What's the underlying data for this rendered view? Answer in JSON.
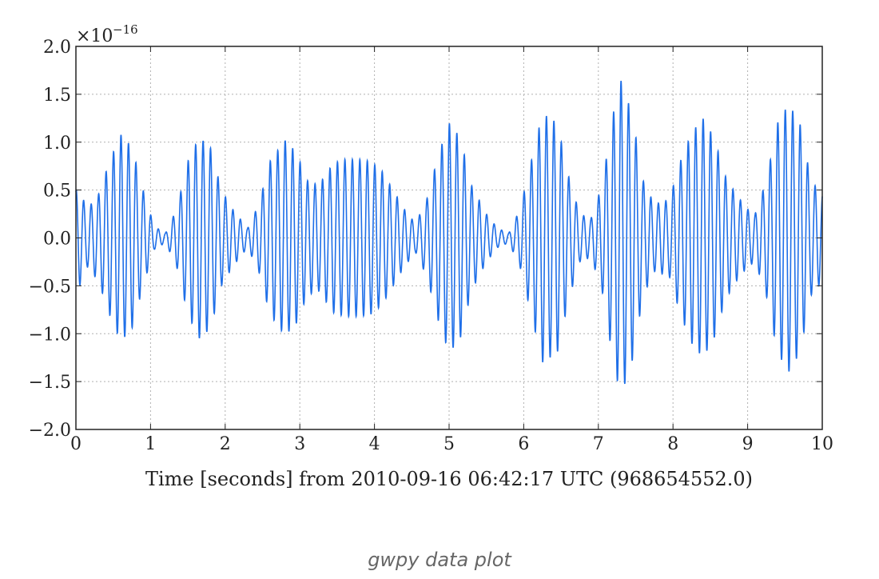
{
  "caption": "gwpy data plot",
  "chart_data": {
    "type": "line",
    "title": "",
    "xlabel": "Time [seconds] from 2010-09-16 06:42:17 UTC (968654552.0)",
    "ylabel": "",
    "xlim": [
      0,
      10
    ],
    "ylim": [
      -2.0,
      2.0
    ],
    "y_scale_label": "×10",
    "y_scale_exponent": "−16",
    "x_ticks": [
      0,
      1,
      2,
      3,
      4,
      5,
      6,
      7,
      8,
      9,
      10
    ],
    "x_tick_labels": [
      "0",
      "1",
      "2",
      "3",
      "4",
      "5",
      "6",
      "7",
      "8",
      "9",
      "10"
    ],
    "y_ticks": [
      -2.0,
      -1.5,
      -1.0,
      -0.5,
      0.0,
      0.5,
      1.0,
      1.5,
      2.0
    ],
    "y_tick_labels": [
      "−2.0",
      "−1.5",
      "−1.0",
      "−0.5",
      "0.0",
      "0.5",
      "1.0",
      "1.5",
      "2.0"
    ],
    "grid": true,
    "line_color": "#1f6fe8",
    "oscillation_period_s": 0.1,
    "envelope": {
      "t": [
        0,
        0.05,
        0.15,
        0.3,
        0.45,
        0.6,
        0.75,
        0.9,
        1.05,
        1.2,
        1.35,
        1.5,
        1.65,
        1.8,
        1.95,
        2.1,
        2.3,
        2.45,
        2.6,
        2.8,
        2.95,
        3.1,
        3.25,
        3.45,
        3.6,
        3.8,
        3.95,
        4.1,
        4.25,
        4.4,
        4.55,
        4.7,
        4.85,
        5.0,
        5.15,
        5.3,
        5.5,
        5.65,
        5.8,
        5.95,
        6.1,
        6.25,
        6.45,
        6.6,
        6.75,
        6.9,
        7.05,
        7.2,
        7.3,
        7.45,
        7.6,
        7.75,
        7.95,
        8.1,
        8.25,
        8.4,
        8.55,
        8.7,
        8.85,
        9.0,
        9.1,
        9.25,
        9.4,
        9.55,
        9.7,
        9.85,
        10.0
      ],
      "amp": [
        0.5,
        0.5,
        0.3,
        0.45,
        0.8,
        1.08,
        0.95,
        0.5,
        0.12,
        0.05,
        0.3,
        0.8,
        1.05,
        0.95,
        0.5,
        0.3,
        0.1,
        0.35,
        0.8,
        1.02,
        0.9,
        0.6,
        0.55,
        0.78,
        0.82,
        0.82,
        0.8,
        0.7,
        0.5,
        0.3,
        0.15,
        0.4,
        0.85,
        1.2,
        1.05,
        0.55,
        0.25,
        0.1,
        0.05,
        0.3,
        0.8,
        1.3,
        1.2,
        0.65,
        0.25,
        0.2,
        0.55,
        1.3,
        1.65,
        1.3,
        0.6,
        0.35,
        0.4,
        0.8,
        1.1,
        1.25,
        1.05,
        0.65,
        0.45,
        0.3,
        0.25,
        0.6,
        1.2,
        1.4,
        1.2,
        0.6,
        0.45
      ]
    }
  }
}
